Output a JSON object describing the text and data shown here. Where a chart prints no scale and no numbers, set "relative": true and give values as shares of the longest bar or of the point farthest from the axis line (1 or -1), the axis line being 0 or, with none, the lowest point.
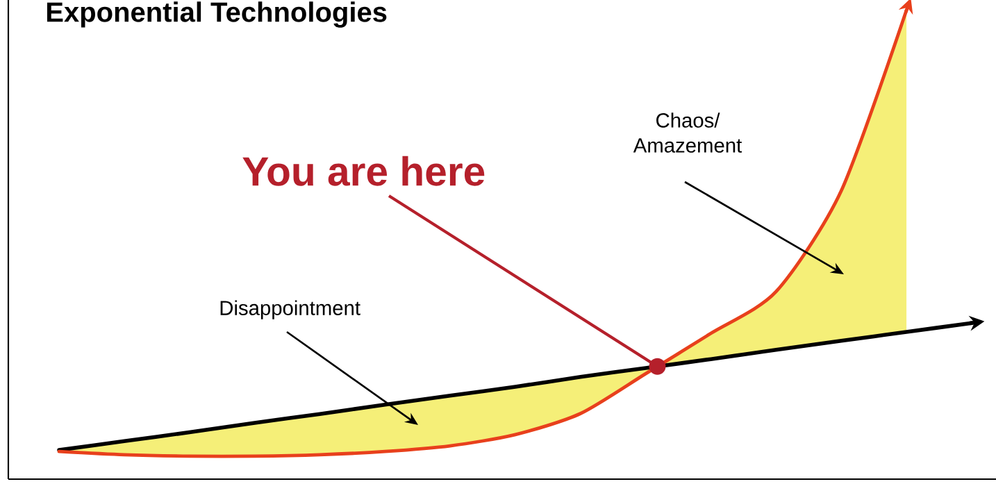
{
  "chart_data": {
    "type": "line",
    "title": "Exponential Technologies",
    "relative": true,
    "categories": [
      null,
      null,
      null,
      null,
      null,
      null,
      null,
      null,
      null,
      null,
      null,
      null,
      null,
      null,
      null
    ],
    "series": [
      {
        "color": "#000000",
        "values": [
          0.062,
          0.081,
          0.1,
          0.12,
          0.139,
          0.159,
          0.178,
          0.197,
          0.218,
          0.237,
          0.256,
          0.276,
          0.295,
          0.314,
          0.333
        ]
      },
      {
        "color": "#e8401c",
        "values": [
          0.059,
          0.052,
          0.049,
          0.049,
          0.052,
          0.059,
          0.071,
          0.095,
          0.14,
          0.225,
          0.311,
          0.4,
          0.615,
          1.0,
          null
        ]
      }
    ],
    "annotations": [
      "You are here",
      "Disappointment",
      "Chaos/ Amazement"
    ],
    "grid": false
  }
}
